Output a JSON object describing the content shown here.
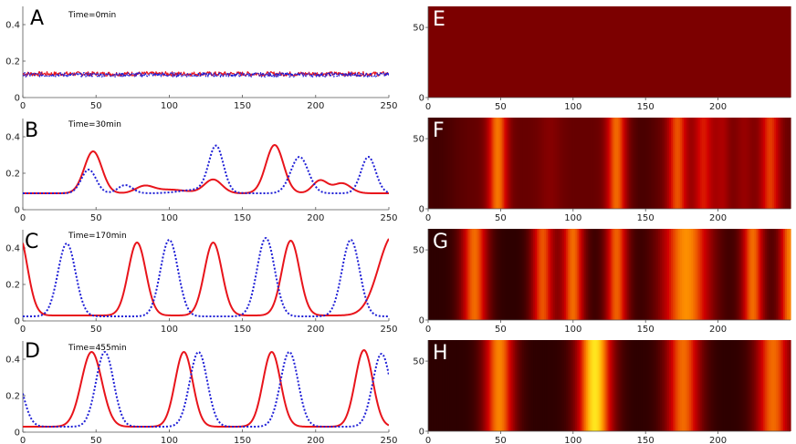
{
  "colors": {
    "red": "#e8141b",
    "blue": "#1f1fd6",
    "axis": "#555555"
  },
  "chart_data": [
    {
      "panel": "A",
      "type": "line",
      "title": "Time=0min",
      "xlim": [
        0,
        250
      ],
      "ylim": [
        0,
        0.5
      ],
      "xticks": [
        0,
        50,
        100,
        150,
        200,
        250
      ],
      "yticks": [
        0,
        0.2,
        0.4
      ],
      "series": [
        {
          "name": "red",
          "style": "solid",
          "baseline": 0.13,
          "noise": 0.012,
          "peaks": []
        },
        {
          "name": "blue",
          "style": "dotted",
          "baseline": 0.125,
          "noise": 0.012,
          "peaks": []
        }
      ]
    },
    {
      "panel": "B",
      "type": "line",
      "title": "Time=30min",
      "xlim": [
        0,
        250
      ],
      "ylim": [
        0,
        0.5
      ],
      "xticks": [
        0,
        50,
        100,
        150,
        200,
        250
      ],
      "yticks": [
        0,
        0.2,
        0.4
      ],
      "series": [
        {
          "name": "red",
          "style": "solid",
          "baseline": 0.09,
          "peaks": [
            [
              48,
              0.23,
              6
            ],
            [
              83,
              0.035,
              6
            ],
            [
              100,
              0.02,
              12
            ],
            [
              130,
              0.075,
              6
            ],
            [
              172,
              0.265,
              6
            ],
            [
              203,
              0.07,
              5
            ],
            [
              218,
              0.055,
              6
            ]
          ]
        },
        {
          "name": "blue",
          "style": "dotted",
          "baseline": 0.09,
          "peaks": [
            [
              45,
              0.13,
              5
            ],
            [
              70,
              0.045,
              5
            ],
            [
              120,
              0.02,
              12
            ],
            [
              132,
              0.25,
              5
            ],
            [
              189,
              0.2,
              6
            ],
            [
              236,
              0.2,
              5
            ]
          ]
        }
      ]
    },
    {
      "panel": "C",
      "type": "line",
      "title": "Time=170min",
      "xlim": [
        0,
        250
      ],
      "ylim": [
        0,
        0.5
      ],
      "xticks": [
        0,
        50,
        100,
        150,
        200,
        250
      ],
      "yticks": [
        0,
        0.2,
        0.4
      ],
      "series": [
        {
          "name": "red",
          "style": "solid",
          "baseline": 0.03,
          "peaks": [
            [
              -3,
              0.45,
              6
            ],
            [
              78,
              0.4,
              6
            ],
            [
              130,
              0.4,
              6
            ],
            [
              183,
              0.41,
              6
            ],
            [
              253,
              0.44,
              10
            ]
          ]
        },
        {
          "name": "blue",
          "style": "dotted",
          "baseline": 0.025,
          "peaks": [
            [
              30,
              0.4,
              6
            ],
            [
              100,
              0.42,
              6
            ],
            [
              166,
              0.43,
              6
            ],
            [
              224,
              0.42,
              6
            ]
          ]
        }
      ]
    },
    {
      "panel": "D",
      "type": "line",
      "title": "Time=455min",
      "xlim": [
        0,
        250
      ],
      "ylim": [
        0,
        0.5
      ],
      "xticks": [
        0,
        50,
        100,
        150,
        200,
        250
      ],
      "yticks": [
        0,
        0.2,
        0.4
      ],
      "series": [
        {
          "name": "red",
          "style": "solid",
          "baseline": 0.03,
          "peaks": [
            [
              47,
              0.41,
              7
            ],
            [
              110,
              0.41,
              6
            ],
            [
              170,
              0.41,
              6
            ],
            [
              233,
              0.42,
              6
            ]
          ]
        },
        {
          "name": "blue",
          "style": "dotted",
          "baseline": 0.03,
          "peaks": [
            [
              -6,
              0.3,
              6
            ],
            [
              56,
              0.41,
              6
            ],
            [
              120,
              0.41,
              6
            ],
            [
              182,
              0.41,
              6
            ],
            [
              245,
              0.4,
              6
            ]
          ]
        }
      ]
    },
    {
      "panel": "E",
      "type": "heatmap",
      "title": "",
      "xlim": [
        0,
        250
      ],
      "ylim": [
        0,
        65
      ],
      "xticks": [
        0,
        50,
        100,
        150,
        200
      ],
      "yticks": [
        0,
        50
      ],
      "profile": {
        "baseline": 0.13,
        "peaks": []
      }
    },
    {
      "panel": "F",
      "type": "heatmap",
      "title": "",
      "xlim": [
        0,
        250
      ],
      "ylim": [
        0,
        65
      ],
      "xticks": [
        0,
        50,
        100,
        150,
        200
      ],
      "yticks": [
        0,
        50
      ],
      "profile": {
        "baseline": 0.1,
        "peaks": [
          [
            5,
            -0.05,
            12
          ],
          [
            48,
            0.23,
            5
          ],
          [
            84,
            0.04,
            6
          ],
          [
            130,
            0.22,
            5
          ],
          [
            148,
            -0.04,
            7
          ],
          [
            172,
            0.2,
            5
          ],
          [
            190,
            0.15,
            5
          ],
          [
            203,
            0.08,
            4
          ],
          [
            218,
            0.06,
            5
          ],
          [
            236,
            0.18,
            5
          ]
        ]
      }
    },
    {
      "panel": "G",
      "type": "heatmap",
      "title": "",
      "xlim": [
        0,
        250
      ],
      "ylim": [
        0,
        65
      ],
      "xticks": [
        0,
        50,
        100,
        150,
        200
      ],
      "yticks": [
        0,
        50
      ],
      "profile": {
        "baseline": 0.02,
        "peaks": [
          [
            32,
            0.3,
            7
          ],
          [
            79,
            0.28,
            6
          ],
          [
            100,
            0.3,
            6
          ],
          [
            130,
            0.29,
            6
          ],
          [
            178,
            0.33,
            13
          ],
          [
            224,
            0.3,
            6
          ],
          [
            250,
            0.32,
            6
          ]
        ]
      }
    },
    {
      "panel": "H",
      "type": "heatmap",
      "title": "",
      "xlim": [
        0,
        250
      ],
      "ylim": [
        0,
        65
      ],
      "xticks": [
        0,
        50,
        100,
        150,
        200
      ],
      "yticks": [
        0,
        50
      ],
      "profile": {
        "baseline": 0.02,
        "peaks": [
          [
            49,
            0.32,
            8
          ],
          [
            115,
            0.4,
            9
          ],
          [
            176,
            0.3,
            9
          ],
          [
            238,
            0.3,
            9
          ]
        ]
      }
    }
  ]
}
